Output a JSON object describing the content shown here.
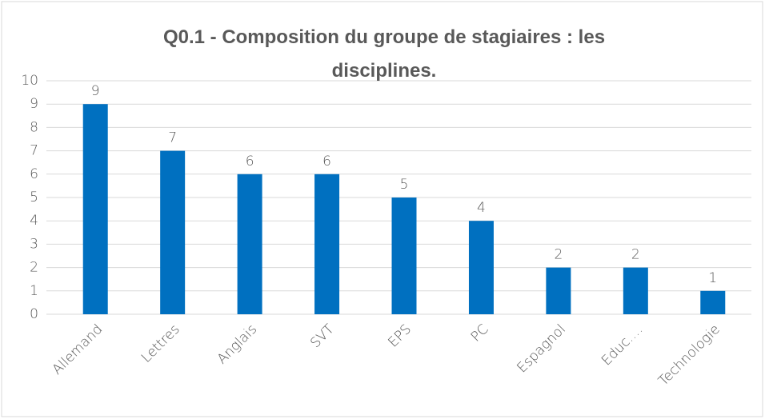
{
  "chart_data": {
    "type": "bar",
    "title": "Q0.1 - Composition du groupe de stagiaires : les disciplines.",
    "categories": [
      "Allemand",
      "Lettres",
      "Anglais",
      "SVT",
      "EPS",
      "PC",
      "Espagnol",
      "Educ.…",
      "Technologie"
    ],
    "values": [
      9,
      7,
      6,
      6,
      5,
      4,
      2,
      2,
      1
    ],
    "color": "#0070c0",
    "ylim": [
      0,
      10
    ],
    "yticks": [
      0,
      1,
      2,
      3,
      4,
      5,
      6,
      7,
      8,
      9,
      10
    ],
    "grid": true
  }
}
